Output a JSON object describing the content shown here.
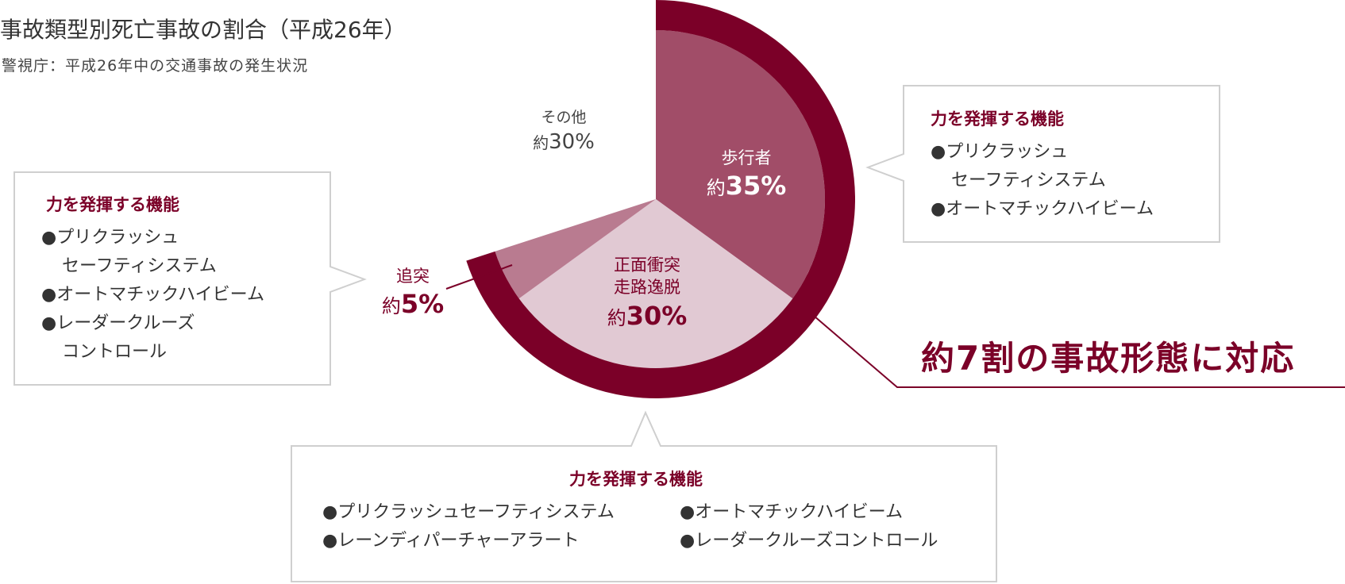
{
  "title": "事故類型別死亡事故の割合（平成26年）",
  "subtitle": "警視庁：平成26年中の交通事故の発生状況",
  "chart_data": {
    "type": "pie",
    "title": "事故類型別死亡事故の割合（平成26年）",
    "categories": [
      "歩行者",
      "正面衝突 走路逸脱",
      "追突",
      "その他"
    ],
    "values": [
      35,
      30,
      5,
      30
    ],
    "unit": "%",
    "labels": [
      {
        "name": "歩行者",
        "prefix": "約",
        "value": "35%"
      },
      {
        "name_lines": [
          "正面衝突",
          "走路逸脱"
        ],
        "prefix": "約",
        "value": "30%"
      },
      {
        "name": "追突",
        "prefix": "約",
        "value": "5%"
      },
      {
        "name": "その他",
        "prefix": "約",
        "value": "30%"
      }
    ],
    "colors": {
      "pedestrian": "#a14d68",
      "head_on": "#e1c9d3",
      "rear_end": "#b97b90",
      "outer_ring": "#7b0028"
    }
  },
  "boxes": {
    "right": {
      "title": "力を発揮する機能",
      "items": [
        {
          "line1": "●プリクラッシュ",
          "line2": "セーフティシステム"
        },
        {
          "line1": "●オートマチックハイビーム",
          "line2": ""
        }
      ]
    },
    "left": {
      "title": "力を発揮する機能",
      "items": [
        {
          "line1": "●プリクラッシュ",
          "line2": "セーフティシステム"
        },
        {
          "line1": "●オートマチックハイビーム",
          "line2": ""
        },
        {
          "line1": "●レーダークルーズ",
          "line2": "コントロール"
        }
      ]
    },
    "bottom": {
      "title": "力を発揮する機能",
      "col1": [
        "●プリクラッシュセーフティシステム",
        "●レーンディパーチャーアラート"
      ],
      "col2": [
        "●オートマチックハイビーム",
        "●レーダークルーズコントロール"
      ]
    }
  },
  "highlight": "約7割の事故形態に対応",
  "accent_color": "#7b0028",
  "box_border_color": "#cccccc"
}
